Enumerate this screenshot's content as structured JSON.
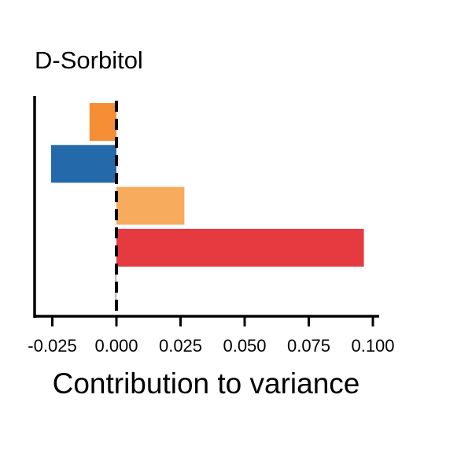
{
  "chart_data": {
    "type": "bar",
    "orientation": "horizontal",
    "title": "D-Sorbitol",
    "xlabel": "Contribution to variance",
    "ylabel": "",
    "xlim": [
      -0.03,
      0.102
    ],
    "xticks": [
      -0.025,
      0.0,
      0.025,
      0.05,
      0.075,
      0.1
    ],
    "xtick_labels": [
      "-0.025",
      "0.000",
      "0.025",
      "0.050",
      "0.075",
      "0.100"
    ],
    "reference_line": {
      "x": 0.0,
      "style": "dashed",
      "color": "#000000"
    },
    "grid": false,
    "legend": false,
    "bars": [
      {
        "value": -0.0105,
        "color": "#f58f35"
      },
      {
        "value": -0.0255,
        "color": "#246aab"
      },
      {
        "value": 0.0265,
        "color": "#f7ab5c"
      },
      {
        "value": 0.0965,
        "color": "#e63a41"
      },
      {
        "value": -0.0005,
        "color": "#aaaaaa"
      }
    ]
  }
}
